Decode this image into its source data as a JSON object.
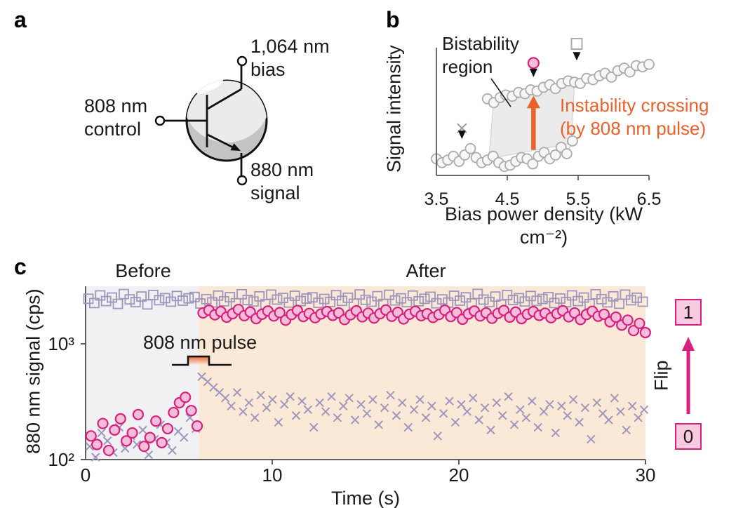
{
  "figure": {
    "panel_letters": {
      "a": "a",
      "b": "b",
      "c": "c"
    }
  },
  "colors": {
    "orange": "#E8622C",
    "magenta": "#D6217E",
    "pink_fill": "#F6BDDA",
    "lavender": "#9E97BD",
    "gray_stroke": "#ABABAB",
    "gray_line": "#C9C9C9",
    "bistability_fill": "#EBEBEB",
    "before_bg": "#F1F0F3",
    "after_bg": "#FBE9D7",
    "flip_box_fill": "#F8CBE1",
    "axis": "#4D4D4D",
    "black": "#111111"
  },
  "panel_a": {
    "bias_l1": "1,064 nm",
    "bias_l2": "bias",
    "control_l1": "808 nm",
    "control_l2": "control",
    "signal_l1": "880 nm",
    "signal_l2": "signal"
  },
  "chart_data": [
    {
      "id": "b",
      "type": "scatter",
      "xlabel": "Bias power density (kW cm⁻²)",
      "ylabel": "Signal intensity",
      "xlim": [
        3.5,
        6.5
      ],
      "ylim": [
        0,
        1.1
      ],
      "xticks": [
        "3.5",
        "4.5",
        "5.5",
        "6.5"
      ],
      "xtick_values": [
        3.5,
        4.5,
        5.5,
        6.5
      ],
      "series": [
        {
          "name": "lower-branch",
          "marker": "circle",
          "x": [
            3.5,
            3.58,
            3.66,
            3.74,
            3.82,
            3.9,
            3.98,
            4.06,
            4.14,
            4.22,
            4.3,
            4.38,
            4.46,
            4.54,
            4.62,
            4.7,
            4.78,
            4.86,
            4.94,
            5.02,
            5.1,
            5.18,
            5.26,
            5.34,
            5.42
          ],
          "y": [
            0.13,
            0.1,
            0.12,
            0.15,
            0.11,
            0.16,
            0.21,
            0.14,
            0.1,
            0.12,
            0.15,
            0.1,
            0.07,
            0.08,
            0.11,
            0.14,
            0.13,
            0.09,
            0.15,
            0.18,
            0.13,
            0.16,
            0.22,
            0.17,
            0.27
          ]
        },
        {
          "name": "upper-branch",
          "marker": "circle",
          "x": [
            4.22,
            4.31,
            4.4,
            4.48,
            4.57,
            4.66,
            4.75,
            4.83,
            4.92,
            5.01,
            5.1,
            5.18,
            5.27,
            5.36,
            5.45,
            5.53,
            5.62,
            5.71,
            5.8,
            5.88,
            5.97,
            6.06,
            6.15,
            6.23,
            6.32,
            6.41,
            6.5
          ],
          "y": [
            0.6,
            0.57,
            0.61,
            0.63,
            0.62,
            0.65,
            0.64,
            0.67,
            0.66,
            0.69,
            0.71,
            0.68,
            0.72,
            0.74,
            0.73,
            0.72,
            0.76,
            0.75,
            0.78,
            0.8,
            0.77,
            0.82,
            0.84,
            0.81,
            0.86,
            0.85,
            0.87
          ]
        }
      ],
      "bistability_polygon": [
        [
          4.24,
          0.13
        ],
        [
          4.31,
          0.6
        ],
        [
          5.45,
          0.73
        ],
        [
          5.4,
          0.25
        ]
      ],
      "annotations": {
        "bistability_l1": "Bistability",
        "bistability_l2": "region",
        "instability_l1": "Instability crossing",
        "instability_l2": "(by 808 nm pulse)",
        "arrow": {
          "x": 4.87,
          "y0": 0.2,
          "y1": 0.57
        },
        "markers": [
          {
            "type": "x",
            "x": 3.86,
            "y": 0.37,
            "tri_y": 0.285
          },
          {
            "type": "circle",
            "x": 4.87,
            "y": 0.88,
            "tri_y": 0.77
          },
          {
            "type": "square",
            "x": 5.48,
            "y": 1.03,
            "tri_y": 0.9
          }
        ]
      }
    },
    {
      "id": "c",
      "type": "scatter",
      "xlabel": "Time (s)",
      "ylabel": "880 nm signal (cps)",
      "yscale": "log",
      "xlim": [
        0,
        30
      ],
      "ylim": [
        100,
        3100
      ],
      "xticks": [
        "0",
        "10",
        "20",
        "30"
      ],
      "xtick_values": [
        0,
        10,
        20,
        30
      ],
      "yticks": [
        {
          "label": "10²",
          "value": 100
        },
        {
          "label": "10³",
          "value": 1000
        }
      ],
      "regions": {
        "before_label": "Before",
        "after_label": "After",
        "boundary_t": 6.06
      },
      "pulse": {
        "label": "808 nm pulse",
        "t_rise": 5.5,
        "t_fall": 6.6
      },
      "flip": {
        "label": "Flip",
        "top_box": "1",
        "bottom_box": "0"
      },
      "dt": 0.316,
      "series": [
        {
          "name": "state-1-squares",
          "marker": "square",
          "t0": 0.15,
          "cps": [
            2450,
            2250,
            2620,
            2340,
            2510,
            2210,
            2690,
            2420,
            2290,
            2560,
            2190,
            2640,
            2380,
            2480,
            2310,
            2590,
            2360,
            2470,
            2540,
            2230,
            2430,
            2280,
            2610,
            2330,
            2530,
            2240,
            2680,
            2390,
            2320,
            2570,
            2200,
            2660,
            2410,
            2490,
            2270,
            2600,
            2340,
            2460,
            2520,
            2260,
            2440,
            2300,
            2630,
            2350,
            2500,
            2220,
            2670,
            2400,
            2310,
            2580,
            2210,
            2650,
            2370,
            2470,
            2290,
            2610,
            2330,
            2450,
            2550,
            2240,
            2420,
            2270,
            2600,
            2360,
            2520,
            2230,
            2700,
            2410,
            2300,
            2560,
            2180,
            2640,
            2390,
            2480,
            2320,
            2590,
            2350,
            2440,
            2530,
            2250,
            2460,
            2290,
            2620,
            2340,
            2510,
            2200,
            2680,
            2430,
            2280,
            2570,
            2220,
            2660,
            2380,
            2500,
            2310
          ]
        },
        {
          "name": "state-0-crosses",
          "marker": "x",
          "t0": 0.22,
          "cps": [
            130,
            105,
            170,
            145,
            115,
            190,
            125,
            160,
            135,
            180,
            110,
            150,
            200,
            140,
            120,
            175,
            155,
            230,
            185,
            520,
            470,
            420,
            380,
            340,
            290,
            380,
            260,
            310,
            230,
            360,
            280,
            330,
            210,
            300,
            350,
            240,
            320,
            270,
            190,
            310,
            260,
            350,
            230,
            290,
            340,
            220,
            300,
            250,
            330,
            200,
            280,
            360,
            240,
            310,
            190,
            270,
            330,
            230,
            290,
            160,
            250,
            320,
            210,
            300,
            260,
            340,
            220,
            280,
            180,
            310,
            240,
            350,
            200,
            270,
            230,
            320,
            190,
            260,
            300,
            170,
            290,
            240,
            330,
            210,
            280,
            150,
            310,
            250,
            220,
            340,
            260,
            180,
            290,
            230,
            270
          ]
        },
        {
          "name": "flip-circles",
          "marker": "circle",
          "t0": 0.29,
          "cps": [
            160,
            135,
            205,
            120,
            180,
            225,
            145,
            170,
            245,
            130,
            155,
            215,
            140,
            185,
            255,
            310,
            345,
            265,
            195,
            1850,
            1950,
            1780,
            1900,
            1700,
            1820,
            1980,
            1750,
            1880,
            1650,
            1800,
            1920,
            1740,
            1860,
            1600,
            1790,
            1940,
            1720,
            1830,
            1680,
            1810,
            1900,
            1760,
            1850,
            1620,
            1780,
            1930,
            1710,
            1840,
            1670,
            1820,
            1960,
            1730,
            1870,
            1640,
            1800,
            1910,
            1750,
            1820,
            1690,
            1790,
            1950,
            1720,
            1860,
            1630,
            1810,
            1920,
            1740,
            1850,
            1660,
            1830,
            1940,
            1700,
            1880,
            1650,
            1800,
            1900,
            1760,
            1840,
            1680,
            1820,
            1930,
            1710,
            1850,
            1620,
            1790,
            1910,
            1730,
            1800,
            1550,
            1700,
            1450,
            1600,
            1300,
            1500,
            1250
          ]
        }
      ]
    }
  ]
}
